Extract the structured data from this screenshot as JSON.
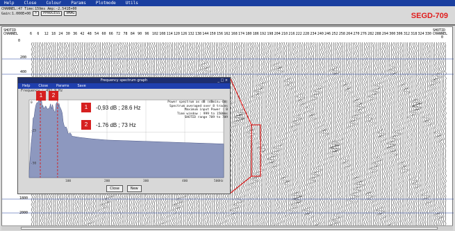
{
  "menubar": [
    "Help",
    "Close",
    "Colour",
    "Params",
    "Plotmode",
    "Utils"
  ],
  "brand": "SEGD-709",
  "info": {
    "line1": "CHANNEL:47   Time:159ms  Amp:-2.541E+00",
    "gain": "Gain:1.000E+00",
    "btn1": ">",
    "btn2": "PPROCESS",
    "btn3": "VMAG"
  },
  "header": {
    "shotid_left": "SHOTID",
    "channel_left": "CHANNEL",
    "shotid_right": "SHOTID",
    "channel_right": "CHANNEL",
    "zero": "0",
    "channels": [
      "6",
      "6",
      "12",
      "18",
      "24",
      "30",
      "36",
      "42",
      "48",
      "54",
      "60",
      "66",
      "72",
      "78",
      "84",
      "90",
      "96",
      "102",
      "108",
      "114",
      "120",
      "126",
      "132",
      "138",
      "144",
      "150",
      "156",
      "162",
      "168",
      "174",
      "180",
      "186",
      "192",
      "198",
      "204",
      "210",
      "216",
      "222",
      "228",
      "234",
      "240",
      "246",
      "252",
      "258",
      "264",
      "270",
      "276",
      "282",
      "288",
      "294",
      "300",
      "306",
      "312",
      "318",
      "324",
      "330"
    ]
  },
  "rows": [
    "0",
    "200",
    "400",
    "1800",
    "2000"
  ],
  "dialog": {
    "title": "Frequency spectrum graph",
    "controls": "_ □ ×",
    "menu": [
      "Help",
      "Close",
      "Params",
      "Save"
    ],
    "freq_label": "Frequency : 492.9 Hz",
    "yticks": [
      "0",
      "-25",
      "-50"
    ],
    "xticks": [
      "100",
      "200",
      "300",
      "400",
      "500Hz"
    ],
    "info_lines": [
      "Power spectrum as dB (dBmin=-60)",
      "Spectrum averaged over 8 traces",
      "Maximum input Power : 0",
      "Time window : 999 to 1500ms",
      "SHOTID range 709 to 709"
    ],
    "close_btn": "Close",
    "new_btn": "New"
  },
  "callouts": [
    {
      "num": "1",
      "text": "-0,93 dB ; 28.6 Hz"
    },
    {
      "num": "2",
      "text": "-1.76 dB ; 73 Hz"
    }
  ],
  "chart_data": {
    "type": "area",
    "x": [
      0,
      10,
      20,
      28.6,
      35,
      45,
      55,
      65,
      73,
      80,
      90,
      100,
      110,
      130,
      160,
      200,
      250,
      300,
      350,
      400,
      450,
      500
    ],
    "y": [
      -55,
      -14,
      -2,
      -0.93,
      -4,
      -6,
      -3,
      -9,
      -1.76,
      -6,
      -20,
      -26,
      -28,
      -29,
      -30,
      -31,
      -31.5,
      -32,
      -32.5,
      -33,
      -33.5,
      -34
    ],
    "xlim": [
      0,
      500
    ],
    "ylim": [
      -60,
      0
    ]
  }
}
